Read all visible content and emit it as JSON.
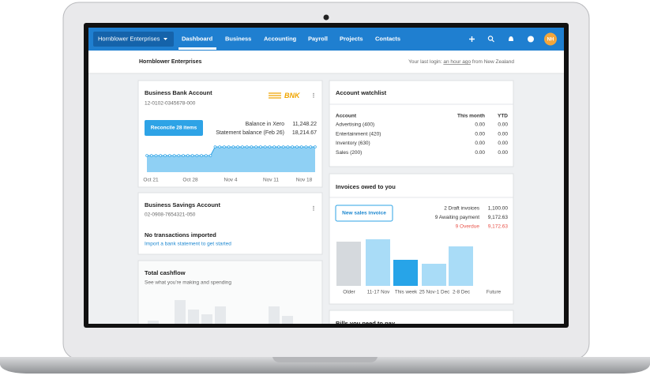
{
  "nav": {
    "org": "Hornblower Enterprises",
    "items": [
      "Dashboard",
      "Business",
      "Accounting",
      "Payroll",
      "Projects",
      "Contacts"
    ],
    "avatar": "NH"
  },
  "header": {
    "title": "Hornblower Enterprises",
    "login_prefix": "Your last login:",
    "login_link": "an hour ago",
    "login_suffix": "from New Zealand"
  },
  "bank": {
    "title": "Business Bank Account",
    "number": "12-0102-0345678-000",
    "logo": "BNK",
    "button": "Reconcile 28 items",
    "balances": [
      {
        "label": "Balance in Xero",
        "value": "11,248.22"
      },
      {
        "label": "Statement balance (Feb 26)",
        "value": "18,214.67"
      }
    ],
    "chart": {
      "type": "area",
      "color": "#8fd0f4",
      "line_color": "#2ea3e6",
      "x_labels": [
        "Oct 21",
        "Oct 28",
        "Nov 4",
        "Nov 11",
        "Nov 18"
      ],
      "values": [
        21,
        21,
        21,
        21,
        21,
        21,
        21,
        21,
        21,
        21,
        21,
        21,
        21,
        21,
        21,
        32,
        32,
        32,
        32,
        32,
        32,
        32,
        32,
        32,
        32,
        32,
        32,
        32,
        32,
        32,
        32,
        32,
        32,
        32,
        32,
        32,
        32,
        32
      ],
      "ylim": [
        0,
        38
      ]
    }
  },
  "savings": {
    "title": "Business Savings Account",
    "number": "02-0908-7654321-050",
    "status": "No transactions imported",
    "link": "Import a bank statement to get started"
  },
  "cashflow": {
    "title": "Total cashflow",
    "subtitle": "See what you're making and spending",
    "type": "bar",
    "color": "#e6e9ec",
    "values": [
      24,
      50,
      38,
      32,
      42,
      42,
      30
    ]
  },
  "watchlist": {
    "title": "Account watchlist",
    "columns": [
      "Account",
      "This month",
      "YTD"
    ],
    "rows": [
      [
        "Advertising (400)",
        "0.00",
        "0.00"
      ],
      [
        "Entertainment (420)",
        "0.00",
        "0.00"
      ],
      [
        "Inventory (630)",
        "0.00",
        "0.00"
      ],
      [
        "Sales (200)",
        "0.00",
        "0.00"
      ]
    ]
  },
  "invoices": {
    "title": "Invoices owed to you",
    "button": "New sales invoice",
    "summary": [
      {
        "label": "2 Draft invoices",
        "value": "1,100.00"
      },
      {
        "label": "9 Awaiting payment",
        "value": "9,172.63"
      },
      {
        "label": "9 Overdue",
        "value": "9,172.63",
        "color": "#e8534a"
      }
    ],
    "chart": {
      "type": "bar",
      "categories": [
        "Older",
        "11-17 Nov",
        "This week",
        "25 Nov-1 Dec",
        "2-8 Dec",
        "Future"
      ],
      "values": [
        56,
        59,
        33,
        28,
        50,
        0
      ],
      "colors": [
        "#d5d9dd",
        "#a9dcf7",
        "#27a4e8",
        "#a9dcf7",
        "#a9dcf7",
        "#a9dcf7"
      ],
      "ylim": [
        0,
        62
      ]
    }
  },
  "bills": {
    "title": "Bills you need to pay"
  }
}
